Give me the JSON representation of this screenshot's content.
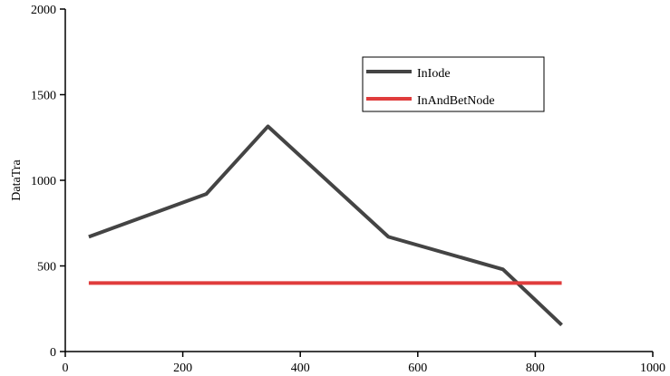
{
  "chart_data": {
    "type": "line",
    "x": [
      40,
      240,
      345,
      550,
      745,
      845
    ],
    "series": [
      {
        "name": "InIode",
        "color": "#444444",
        "values": [
          670,
          920,
          1315,
          670,
          480,
          155
        ]
      },
      {
        "name": "InAndBetNode",
        "color": "#e03c3c",
        "values": [
          400,
          400,
          400,
          400,
          400,
          400
        ]
      }
    ],
    "ylabel": "DataTra",
    "xlim": [
      0,
      1000
    ],
    "xticks": [
      0,
      200,
      400,
      600,
      800,
      1000
    ],
    "ylim": [
      0,
      2000
    ],
    "yticks": [
      0,
      500,
      1000,
      1500,
      2000
    ],
    "legend": "upper-right"
  }
}
